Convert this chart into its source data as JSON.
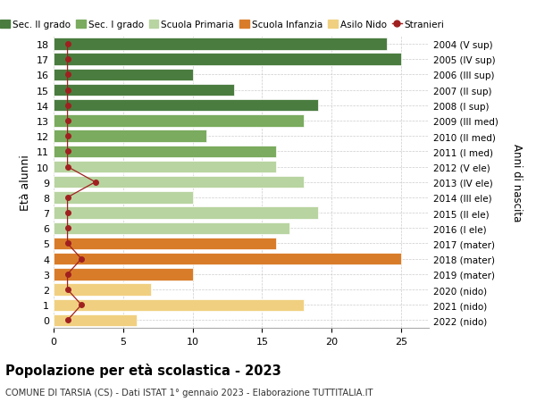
{
  "ages": [
    18,
    17,
    16,
    15,
    14,
    13,
    12,
    11,
    10,
    9,
    8,
    7,
    6,
    5,
    4,
    3,
    2,
    1,
    0
  ],
  "right_labels": [
    "2004 (V sup)",
    "2005 (IV sup)",
    "2006 (III sup)",
    "2007 (II sup)",
    "2008 (I sup)",
    "2009 (III med)",
    "2010 (II med)",
    "2011 (I med)",
    "2012 (V ele)",
    "2013 (IV ele)",
    "2014 (III ele)",
    "2015 (II ele)",
    "2016 (I ele)",
    "2017 (mater)",
    "2018 (mater)",
    "2019 (mater)",
    "2020 (nido)",
    "2021 (nido)",
    "2022 (nido)"
  ],
  "bar_values": [
    24,
    25,
    10,
    13,
    19,
    18,
    11,
    16,
    16,
    18,
    10,
    19,
    17,
    16,
    25,
    10,
    7,
    18,
    6
  ],
  "bar_colors": [
    "#4a7c3f",
    "#4a7c3f",
    "#4a7c3f",
    "#4a7c3f",
    "#4a7c3f",
    "#7aab5e",
    "#7aab5e",
    "#7aab5e",
    "#b8d4a0",
    "#b8d4a0",
    "#b8d4a0",
    "#b8d4a0",
    "#b8d4a0",
    "#d97c2a",
    "#d97c2a",
    "#d97c2a",
    "#f0d080",
    "#f0d080",
    "#f0d080"
  ],
  "stranieri_values": [
    1,
    1,
    1,
    1,
    1,
    1,
    1,
    1,
    1,
    3,
    1,
    1,
    1,
    1,
    2,
    1,
    1,
    2,
    1
  ],
  "stranieri_color": "#a02020",
  "legend_entries": [
    {
      "label": "Sec. II grado",
      "color": "#4a7c3f",
      "type": "patch"
    },
    {
      "label": "Sec. I grado",
      "color": "#7aab5e",
      "type": "patch"
    },
    {
      "label": "Scuola Primaria",
      "color": "#b8d4a0",
      "type": "patch"
    },
    {
      "label": "Scuola Infanzia",
      "color": "#d97c2a",
      "type": "patch"
    },
    {
      "label": "Asilo Nido",
      "color": "#f0d080",
      "type": "patch"
    },
    {
      "label": "Stranieri",
      "color": "#a02020",
      "type": "line"
    }
  ],
  "ylabel": "Età alunni",
  "right_axis_label": "Anni di nascita",
  "title": "Popolazione per età scolastica - 2023",
  "subtitle": "COMUNE DI TARSIA (CS) - Dati ISTAT 1° gennaio 2023 - Elaborazione TUTTITALIA.IT",
  "xlim": [
    0,
    27
  ],
  "xticks": [
    0,
    5,
    10,
    15,
    20,
    25
  ],
  "background_color": "#ffffff",
  "grid_color": "#cccccc"
}
